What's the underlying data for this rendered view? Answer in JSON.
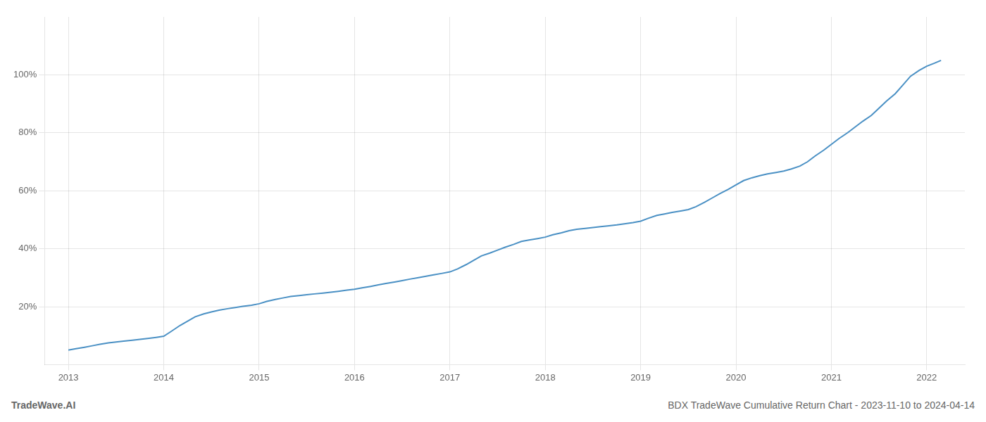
{
  "chart_data": {
    "type": "line",
    "x": [
      2013.0,
      2013.08,
      2013.17,
      2013.25,
      2013.33,
      2013.42,
      2013.5,
      2013.58,
      2013.67,
      2013.75,
      2013.83,
      2013.92,
      2014.0,
      2014.08,
      2014.17,
      2014.25,
      2014.33,
      2014.42,
      2014.5,
      2014.58,
      2014.67,
      2014.75,
      2014.83,
      2014.92,
      2015.0,
      2015.08,
      2015.17,
      2015.25,
      2015.33,
      2015.42,
      2015.5,
      2015.58,
      2015.67,
      2015.75,
      2015.83,
      2015.92,
      2016.0,
      2016.08,
      2016.17,
      2016.25,
      2016.33,
      2016.42,
      2016.5,
      2016.58,
      2016.67,
      2016.75,
      2016.83,
      2016.92,
      2017.0,
      2017.08,
      2017.17,
      2017.25,
      2017.33,
      2017.42,
      2017.5,
      2017.58,
      2017.67,
      2017.75,
      2017.83,
      2017.92,
      2018.0,
      2018.08,
      2018.17,
      2018.25,
      2018.33,
      2018.42,
      2018.5,
      2018.58,
      2018.67,
      2018.75,
      2018.83,
      2018.92,
      2019.0,
      2019.08,
      2019.17,
      2019.25,
      2019.33,
      2019.42,
      2019.5,
      2019.58,
      2019.67,
      2019.75,
      2019.83,
      2019.92,
      2020.0,
      2020.08,
      2020.17,
      2020.25,
      2020.33,
      2020.42,
      2020.5,
      2020.58,
      2020.67,
      2020.75,
      2020.83,
      2020.92,
      2021.0,
      2021.08,
      2021.17,
      2021.25,
      2021.33,
      2021.42,
      2021.5,
      2021.58,
      2021.67,
      2021.75,
      2021.83,
      2021.92,
      2022.0,
      2022.08,
      2022.15
    ],
    "values": [
      5.0,
      5.5,
      6.0,
      6.5,
      7.0,
      7.5,
      7.8,
      8.1,
      8.4,
      8.7,
      9.0,
      9.4,
      9.8,
      11.5,
      13.5,
      15.0,
      16.5,
      17.5,
      18.2,
      18.8,
      19.3,
      19.7,
      20.1,
      20.5,
      21.0,
      21.8,
      22.5,
      23.0,
      23.5,
      23.8,
      24.1,
      24.4,
      24.7,
      25.0,
      25.3,
      25.7,
      26.0,
      26.5,
      27.0,
      27.5,
      28.0,
      28.5,
      29.0,
      29.5,
      30.0,
      30.5,
      31.0,
      31.5,
      32.0,
      33.0,
      34.5,
      36.0,
      37.5,
      38.5,
      39.5,
      40.5,
      41.5,
      42.5,
      43.0,
      43.5,
      44.0,
      44.8,
      45.5,
      46.2,
      46.7,
      47.0,
      47.3,
      47.6,
      47.9,
      48.2,
      48.6,
      49.0,
      49.5,
      50.5,
      51.5,
      52.0,
      52.5,
      53.0,
      53.5,
      54.5,
      56.0,
      57.5,
      59.0,
      60.5,
      62.0,
      63.5,
      64.5,
      65.2,
      65.8,
      66.3,
      66.8,
      67.5,
      68.5,
      70.0,
      72.0,
      74.0,
      76.0,
      78.0,
      80.0,
      82.0,
      84.0,
      86.0,
      88.5,
      91.0,
      93.5,
      96.5,
      99.5,
      101.5,
      103.0,
      104.0,
      105.0
    ],
    "color": "#4a90c4",
    "xlim": [
      2012.75,
      2022.4
    ],
    "xticks": [
      2013,
      2014,
      2015,
      2016,
      2017,
      2018,
      2019,
      2020,
      2021,
      2022
    ],
    "ylim": [
      0,
      120
    ],
    "yticks": [
      {
        "value": 20,
        "label": "20%"
      },
      {
        "value": 40,
        "label": "40%"
      },
      {
        "value": 60,
        "label": "60%"
      },
      {
        "value": 80,
        "label": "80%"
      },
      {
        "value": 100,
        "label": "100%"
      }
    ],
    "grid": true,
    "annotations": [
      "TradeWave.AI",
      "BDX TradeWave Cumulative Return Chart - 2023-11-10 to 2024-04-14"
    ]
  }
}
